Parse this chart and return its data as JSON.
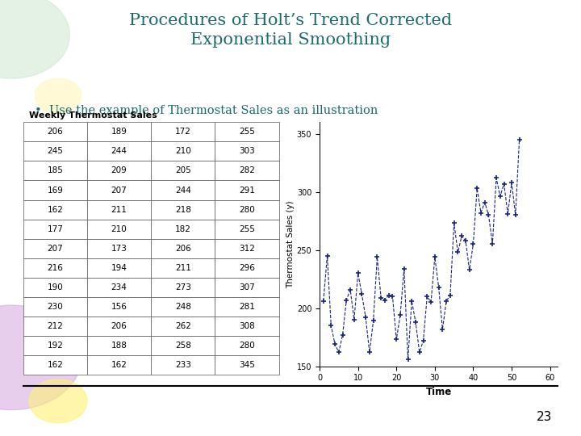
{
  "title": "Procedures of Holt’s Trend Corrected\nExponential Smoothing",
  "bullet": "Use the example of Thermostat Sales as an illustration",
  "table_title": "Weekly Thermostat Sales",
  "table_data": [
    [
      206,
      189,
      172,
      255
    ],
    [
      245,
      244,
      210,
      303
    ],
    [
      185,
      209,
      205,
      282
    ],
    [
      169,
      207,
      244,
      291
    ],
    [
      162,
      211,
      218,
      280
    ],
    [
      177,
      210,
      182,
      255
    ],
    [
      207,
      173,
      206,
      312
    ],
    [
      216,
      194,
      211,
      296
    ],
    [
      190,
      234,
      273,
      307
    ],
    [
      230,
      156,
      248,
      281
    ],
    [
      212,
      206,
      262,
      308
    ],
    [
      192,
      188,
      258,
      280
    ],
    [
      162,
      162,
      233,
      345
    ]
  ],
  "plot_ylabel": "Thermostat Sales (y)",
  "plot_xlabel": "Time",
  "plot_ylim": [
    150,
    360
  ],
  "plot_xlim": [
    0,
    62
  ],
  "plot_yticks": [
    150,
    200,
    250,
    300,
    350
  ],
  "plot_xticks": [
    0,
    10,
    20,
    30,
    40,
    50,
    60
  ],
  "line_color": "#1a237e",
  "bg_color": "#ffffff",
  "title_color": "#1a6b6b",
  "bullet_color": "#1a6b6b",
  "slide_bg": "#ffffff",
  "page_number": "23"
}
